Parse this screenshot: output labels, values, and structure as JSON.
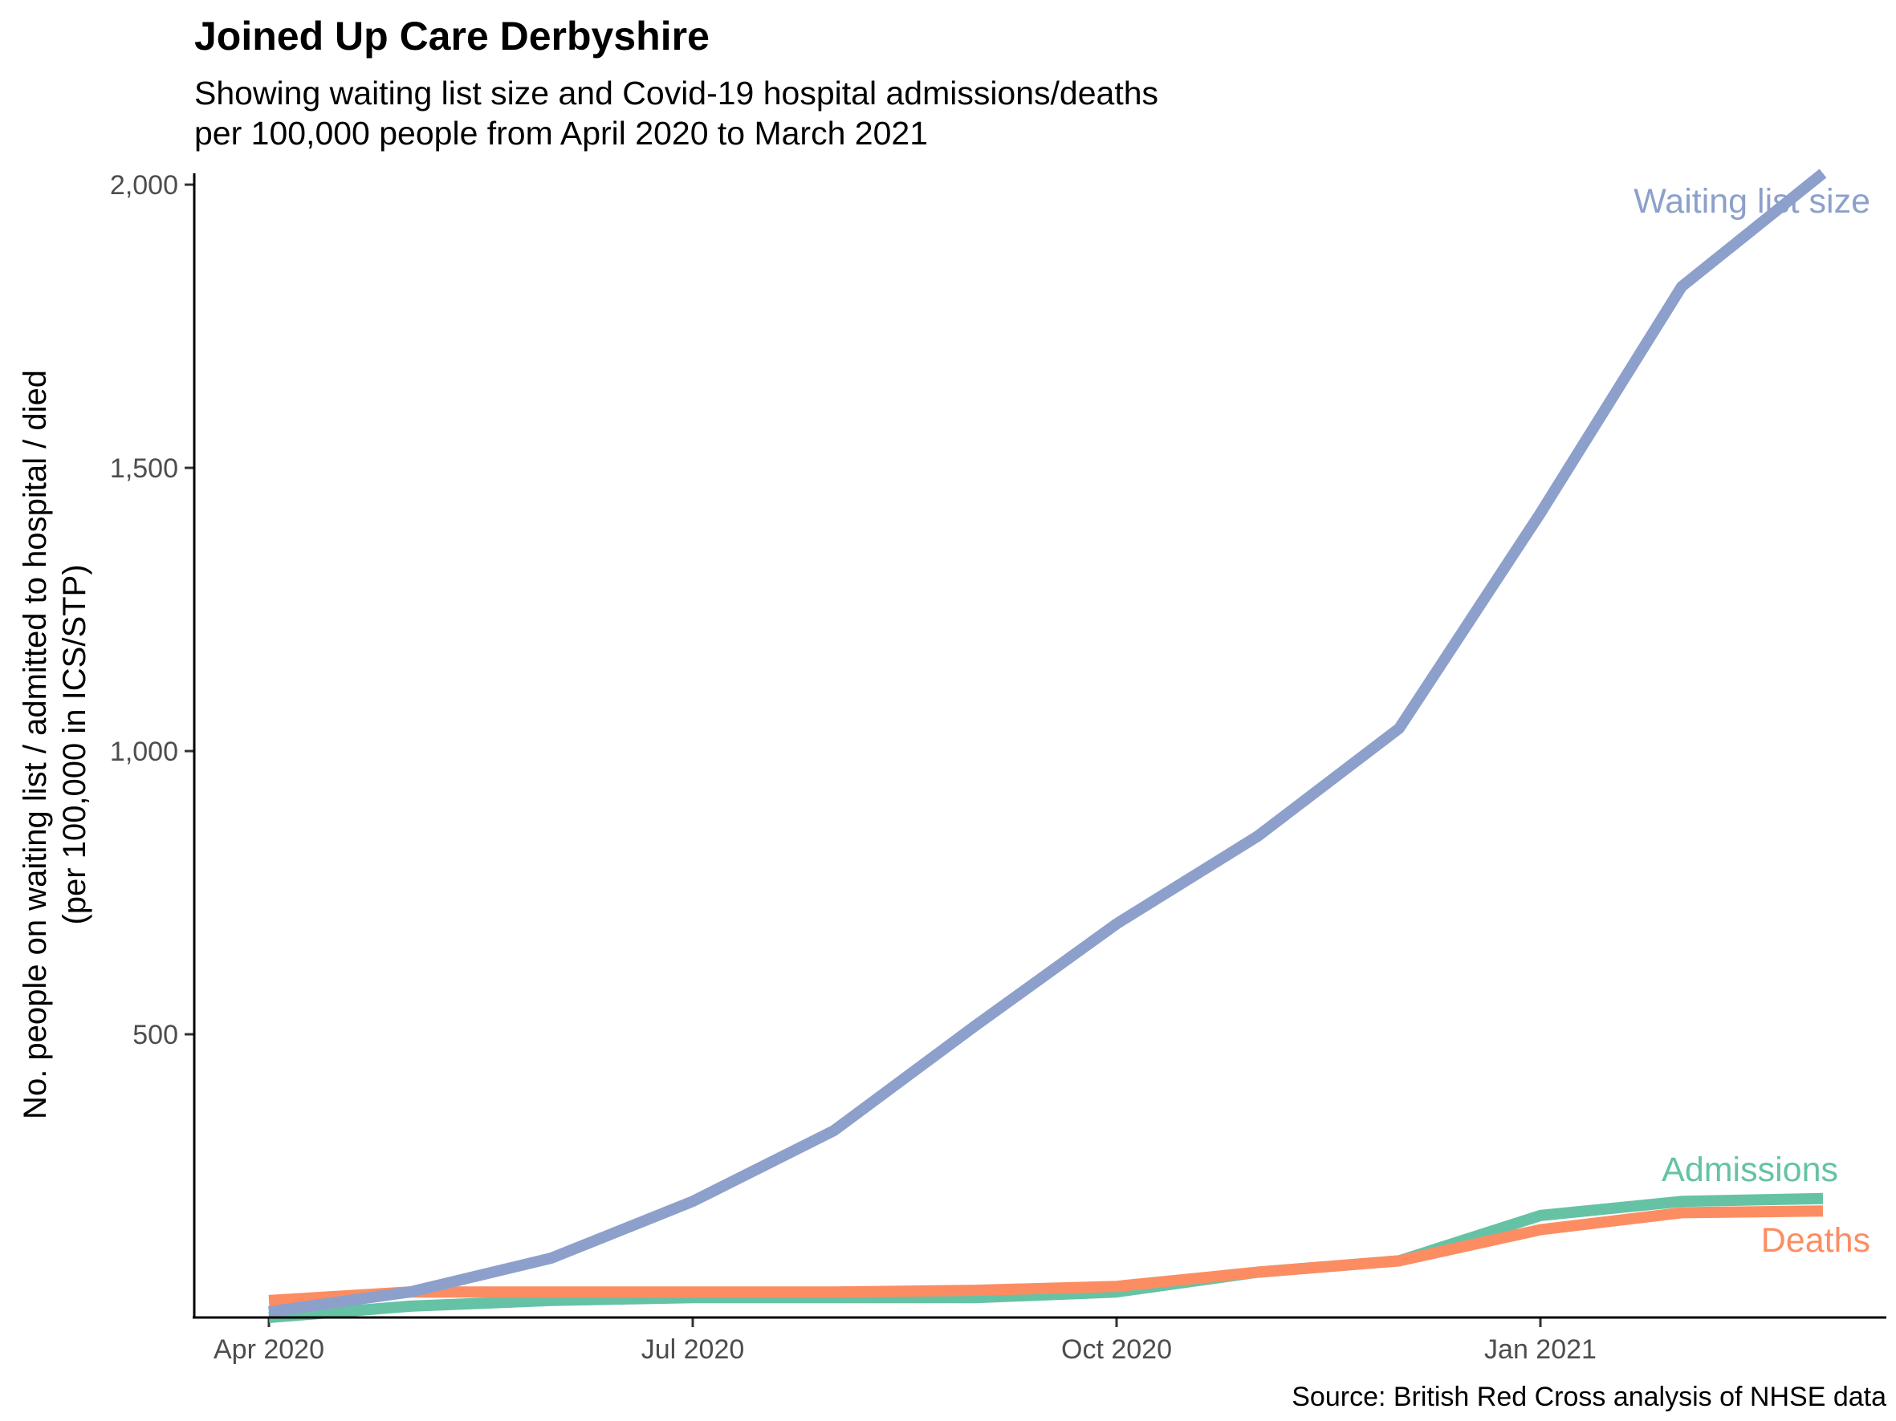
{
  "chart_data": {
    "type": "line",
    "title": "Joined Up Care Derbyshire",
    "subtitle_lines": [
      "Showing waiting list size and Covid-19 hospital admissions/deaths",
      "per 100,000 people from April 2020 to March 2021"
    ],
    "ylabel_lines": [
      "No. people on waiting list / admitted to hospital / died",
      "(per 100,000 in ICS/STP)"
    ],
    "caption": "Source: British Red Cross analysis of NHSE data",
    "x": [
      "2020-04",
      "2020-05",
      "2020-06",
      "2020-07",
      "2020-08",
      "2020-09",
      "2020-10",
      "2020-11",
      "2020-12",
      "2021-01",
      "2021-02",
      "2021-03"
    ],
    "x_ticks": [
      {
        "label": "Apr 2020",
        "month": 0
      },
      {
        "label": "Jul 2020",
        "month": 3
      },
      {
        "label": "Oct 2020",
        "month": 6
      },
      {
        "label": "Jan 2021",
        "month": 9
      }
    ],
    "ylim": [
      0,
      2020
    ],
    "y_ticks": [
      {
        "label": "500",
        "value": 500
      },
      {
        "label": "1,000",
        "value": 1000
      },
      {
        "label": "1,500",
        "value": 1500
      },
      {
        "label": "2,000",
        "value": 2000
      }
    ],
    "series": [
      {
        "name": "Admissions",
        "color": "#66C2A5",
        "values": [
          0,
          20,
          30,
          35,
          35,
          35,
          45,
          80,
          100,
          180,
          205,
          210
        ]
      },
      {
        "name": "Deaths",
        "color": "#FC8D62",
        "values": [
          30,
          45,
          45,
          45,
          45,
          48,
          55,
          80,
          100,
          155,
          185,
          188
        ]
      },
      {
        "name": "Waiting list size",
        "color": "#8DA0CB",
        "values": [
          10,
          45,
          105,
          205,
          330,
          515,
          695,
          850,
          1040,
          1420,
          1820,
          2020
        ]
      }
    ],
    "grid": false,
    "legend": "direct labels at line ends"
  }
}
